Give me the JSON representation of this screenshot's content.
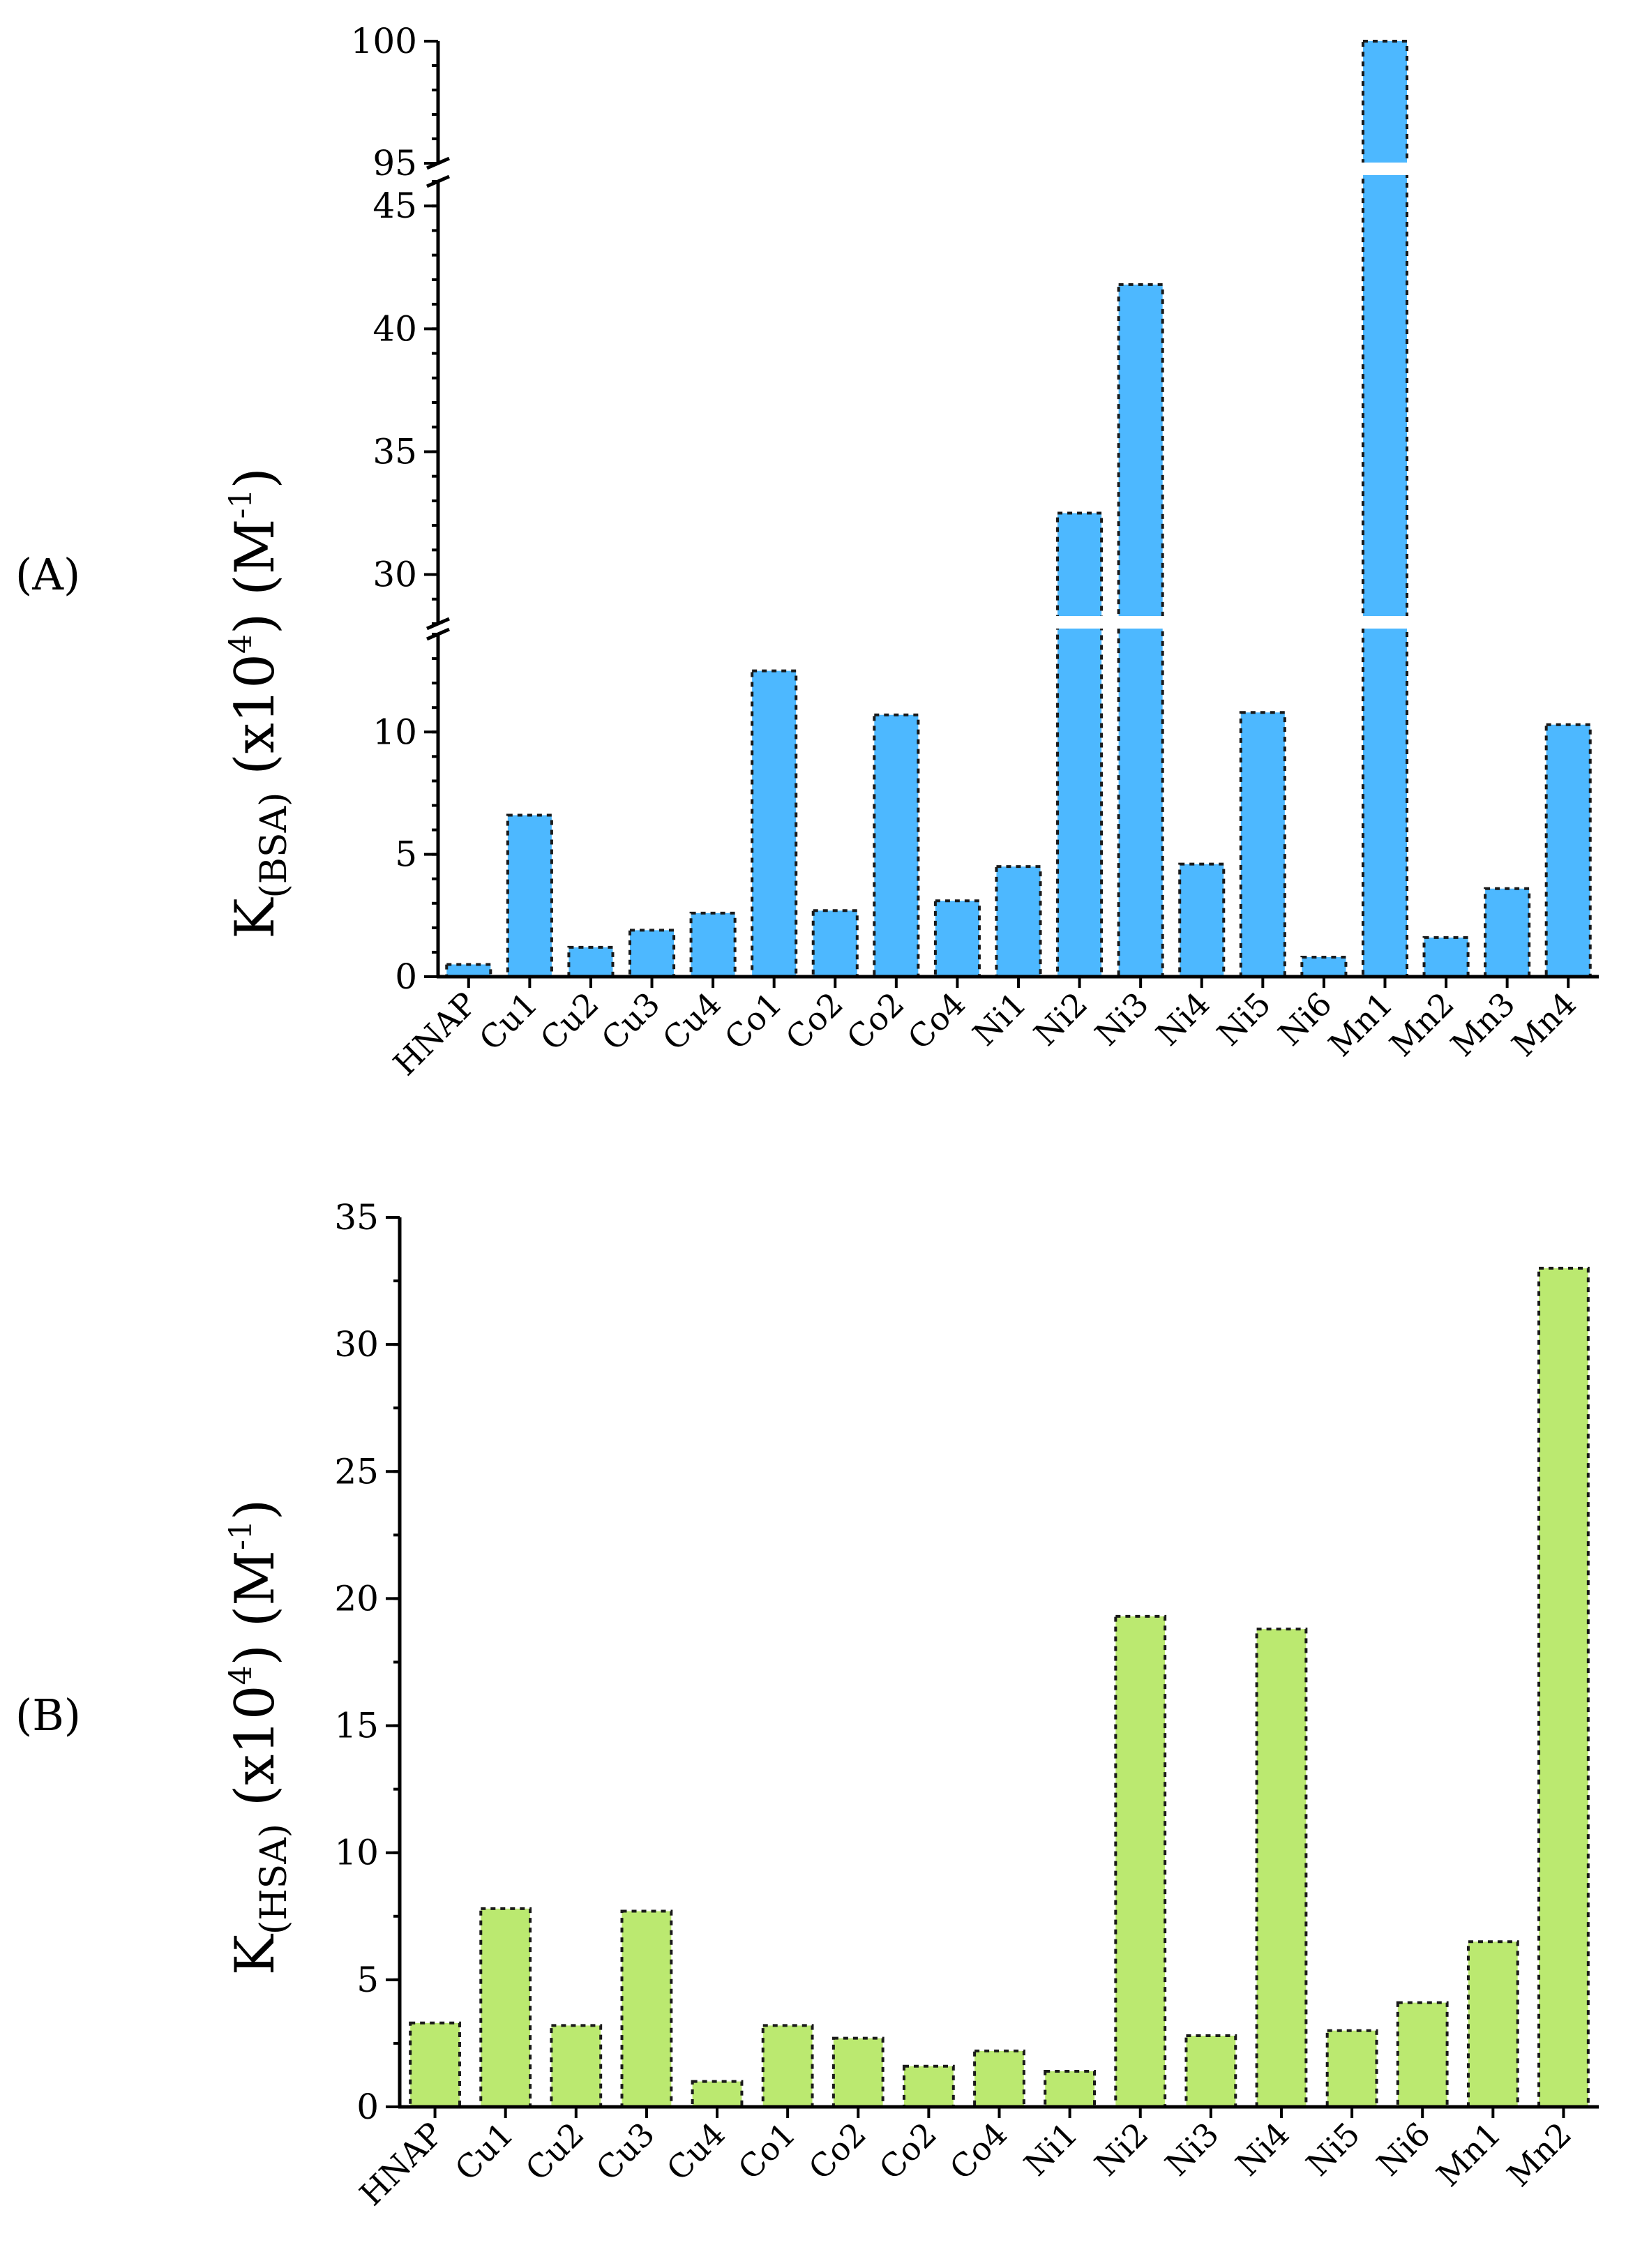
{
  "chart_data": [
    {
      "id": "panel-a",
      "type": "bar",
      "panel_label": "(A)",
      "title": "",
      "xlabel": "",
      "ylabel": {
        "main": "K",
        "sub": "(BSA)",
        "mid": " (x10",
        "sup": "4",
        "mid2": ") (M",
        "sup2": "-1",
        "tail": ")"
      },
      "bar_color": "#4db8ff",
      "axis_breaks": [
        [
          14,
          28
        ],
        [
          46,
          95
        ]
      ],
      "segments": [
        {
          "ylim": [
            0,
            14
          ],
          "ticks": [
            "0",
            "5",
            "10"
          ]
        },
        {
          "ylim": [
            28,
            46
          ],
          "ticks": [
            "30",
            "35",
            "40",
            "45"
          ]
        },
        {
          "ylim": [
            95,
            100
          ],
          "ticks": [
            "95",
            "100"
          ]
        }
      ],
      "categories": [
        "HNAP",
        "Cu1",
        "Cu2",
        "Cu3",
        "Cu4",
        "Co1",
        "Co2",
        "Co2",
        "Co4",
        "Ni1",
        "Ni2",
        "Ni3",
        "Ni4",
        "Ni5",
        "Ni6",
        "Mn1",
        "Mn2",
        "Mn3",
        "Mn4"
      ],
      "values": [
        0.5,
        6.6,
        1.2,
        1.9,
        2.6,
        12.5,
        2.7,
        10.7,
        3.1,
        4.5,
        32.5,
        41.8,
        4.6,
        10.8,
        0.8,
        100,
        1.6,
        3.6,
        10.3
      ]
    },
    {
      "id": "panel-b",
      "type": "bar",
      "panel_label": "(B)",
      "title": "",
      "xlabel": "",
      "ylabel": {
        "main": "K",
        "sub": "(HSA)",
        "mid": " (x10",
        "sup": "4",
        "mid2": ") (M",
        "sup2": "-1",
        "tail": ")"
      },
      "bar_color": "#bbe970",
      "ylim": [
        0,
        35
      ],
      "ticks": [
        "0",
        "5",
        "10",
        "15",
        "20",
        "25",
        "30",
        "35"
      ],
      "categories": [
        "HNAP",
        "Cu1",
        "Cu2",
        "Cu3",
        "Cu4",
        "Co1",
        "Co2",
        "Co2",
        "Co4",
        "Ni1",
        "Ni2",
        "Ni3",
        "Ni4",
        "Ni5",
        "Ni6",
        "Mn1",
        "Mn2"
      ],
      "values": [
        3.3,
        7.8,
        3.2,
        7.7,
        1.0,
        3.2,
        2.7,
        1.6,
        2.2,
        1.4,
        19.3,
        2.8,
        18.8,
        3.0,
        4.1,
        6.5,
        33.0
      ]
    }
  ]
}
